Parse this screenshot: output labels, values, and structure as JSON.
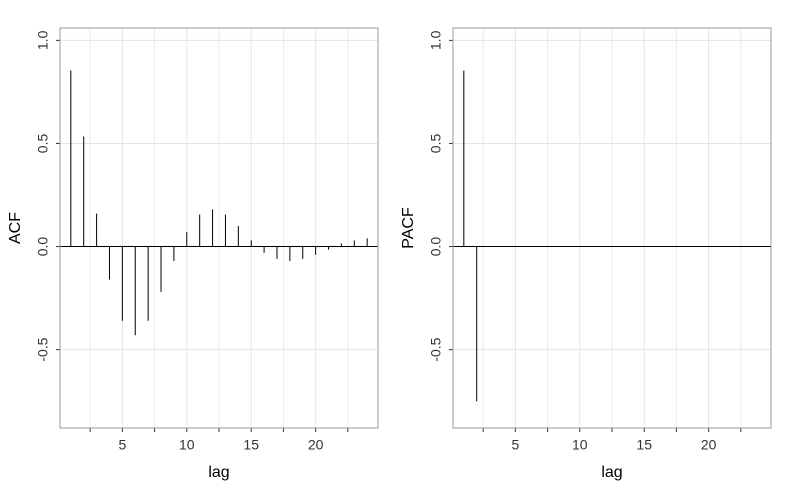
{
  "chart_data": [
    {
      "type": "spike",
      "ylabel": "ACF",
      "xlabel": "lag",
      "x": [
        1,
        2,
        3,
        4,
        5,
        6,
        7,
        8,
        9,
        10,
        11,
        12,
        13,
        14,
        15,
        16,
        17,
        18,
        19,
        20,
        21,
        22,
        23,
        24
      ],
      "values": [
        0.854,
        0.534,
        0.16,
        -0.16,
        -0.36,
        -0.43,
        -0.36,
        -0.22,
        -0.07,
        0.07,
        0.155,
        0.18,
        0.155,
        0.1,
        0.03,
        -0.03,
        -0.06,
        -0.07,
        -0.06,
        -0.04,
        -0.015,
        0.015,
        0.03,
        0.04
      ],
      "color": "#000000",
      "xlim": [
        0.16,
        24.84
      ],
      "xticks": [
        5,
        10,
        15,
        20
      ],
      "xminorticks": [
        2.5,
        7.5,
        12.5,
        17.5,
        22.5
      ],
      "ylim": [
        -0.88,
        1.06
      ],
      "yticks": [
        -0.5,
        {
          "value": 0,
          "label": "0.0"
        },
        0.5,
        {
          "value": 1,
          "label": "1.0"
        }
      ],
      "grid": true
    },
    {
      "type": "spike",
      "ylabel": "PACF",
      "xlabel": "lag",
      "x": [
        1,
        2,
        3,
        4,
        5,
        6,
        7,
        8,
        9,
        10,
        11,
        12,
        13,
        14,
        15,
        16,
        17,
        18,
        19,
        20,
        21,
        22,
        23,
        24
      ],
      "values": [
        0.854,
        -0.75,
        0,
        0,
        0,
        0,
        0,
        0,
        0,
        0,
        0,
        0,
        0,
        0,
        0,
        0,
        0,
        0,
        0,
        0,
        0,
        0,
        0,
        0
      ],
      "color": "#000000",
      "xlim": [
        0.16,
        24.84
      ],
      "xticks": [
        5,
        10,
        15,
        20
      ],
      "xminorticks": [
        2.5,
        7.5,
        12.5,
        17.5,
        22.5
      ],
      "ylim": [
        -0.88,
        1.06
      ],
      "yticks": [
        -0.5,
        {
          "value": 0,
          "label": "0.0"
        },
        0.5,
        {
          "value": 1,
          "label": "1.0"
        }
      ],
      "grid": true
    }
  ]
}
